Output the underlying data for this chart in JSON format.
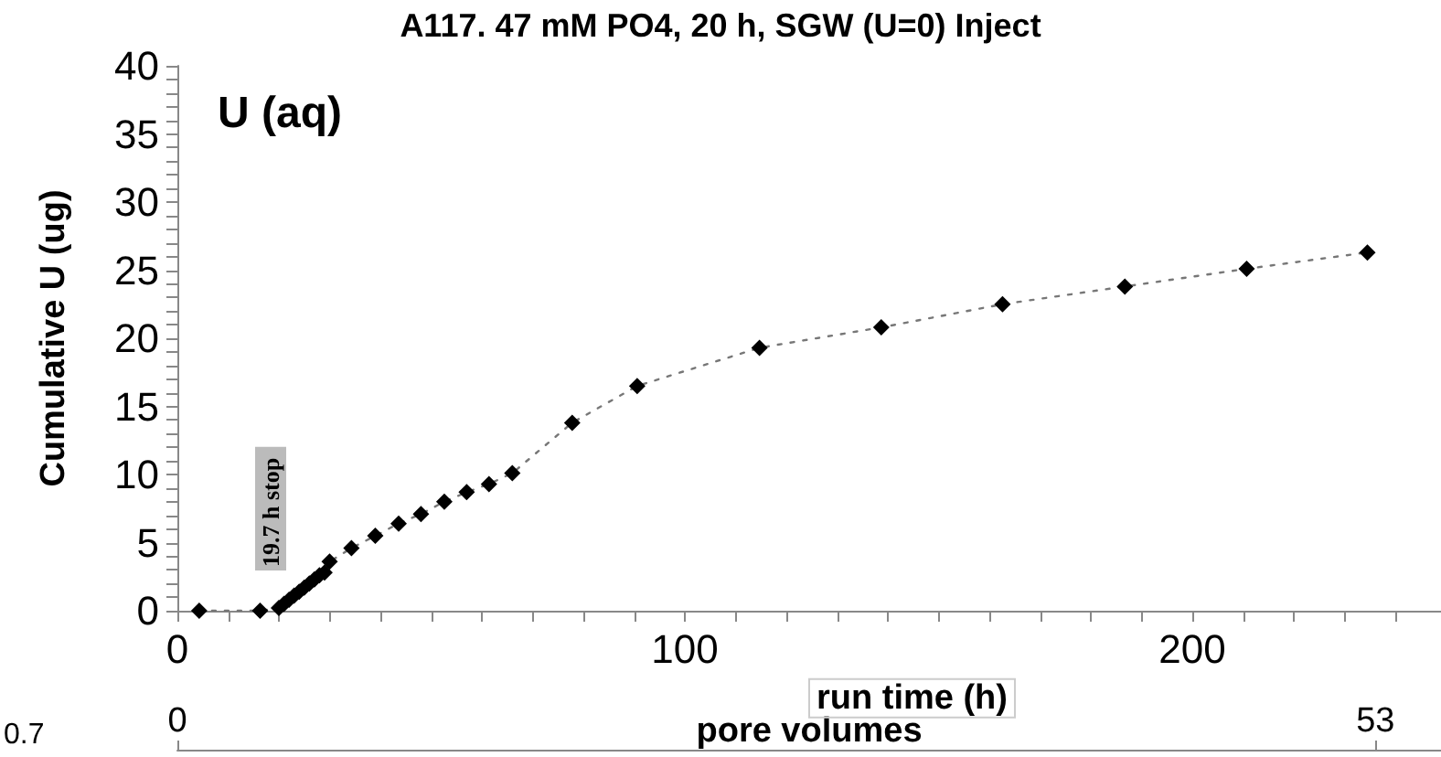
{
  "chart_data": {
    "type": "line",
    "title": "A117. 47 mM PO4, 20 h, SGW (U=0) Inject",
    "xlabel": "run time (h)",
    "ylabel": "Cumulative U (ug)",
    "x2label": "pore volumes",
    "annotations": [
      "U (aq)",
      "19.7 h stop",
      "0.7"
    ],
    "series": [
      {
        "color": "#000000",
        "x": [
          4.3,
          16.3,
          20,
          21,
          22,
          23,
          24,
          25,
          26,
          27,
          28,
          29,
          30,
          34.3,
          39,
          43.6,
          48,
          52.6,
          57,
          61.4,
          66,
          77.8,
          90.6,
          114.7,
          138.7,
          162.6,
          186.7,
          210.7,
          234.5
        ],
        "values": [
          0,
          0,
          0.2,
          0.5,
          0.8,
          1.1,
          1.4,
          1.7,
          2.0,
          2.3,
          2.6,
          2.8,
          3.6,
          4.6,
          5.5,
          6.4,
          7.1,
          8.0,
          8.7,
          9.3,
          10.1,
          13.8,
          16.5,
          19.3,
          20.8,
          22.5,
          23.8,
          25.1,
          26.3
        ]
      }
    ],
    "xlim": [
      0,
      249
    ],
    "xticks": [
      0,
      100,
      200
    ],
    "ylim": [
      0,
      40
    ],
    "yticks": [
      0,
      5,
      10,
      15,
      20,
      25,
      30,
      35,
      40
    ],
    "x2lim": [
      0,
      55.9
    ],
    "x2ticks": [
      0,
      53
    ],
    "marker": "diamond",
    "line_style": "dotted",
    "grid": false
  }
}
